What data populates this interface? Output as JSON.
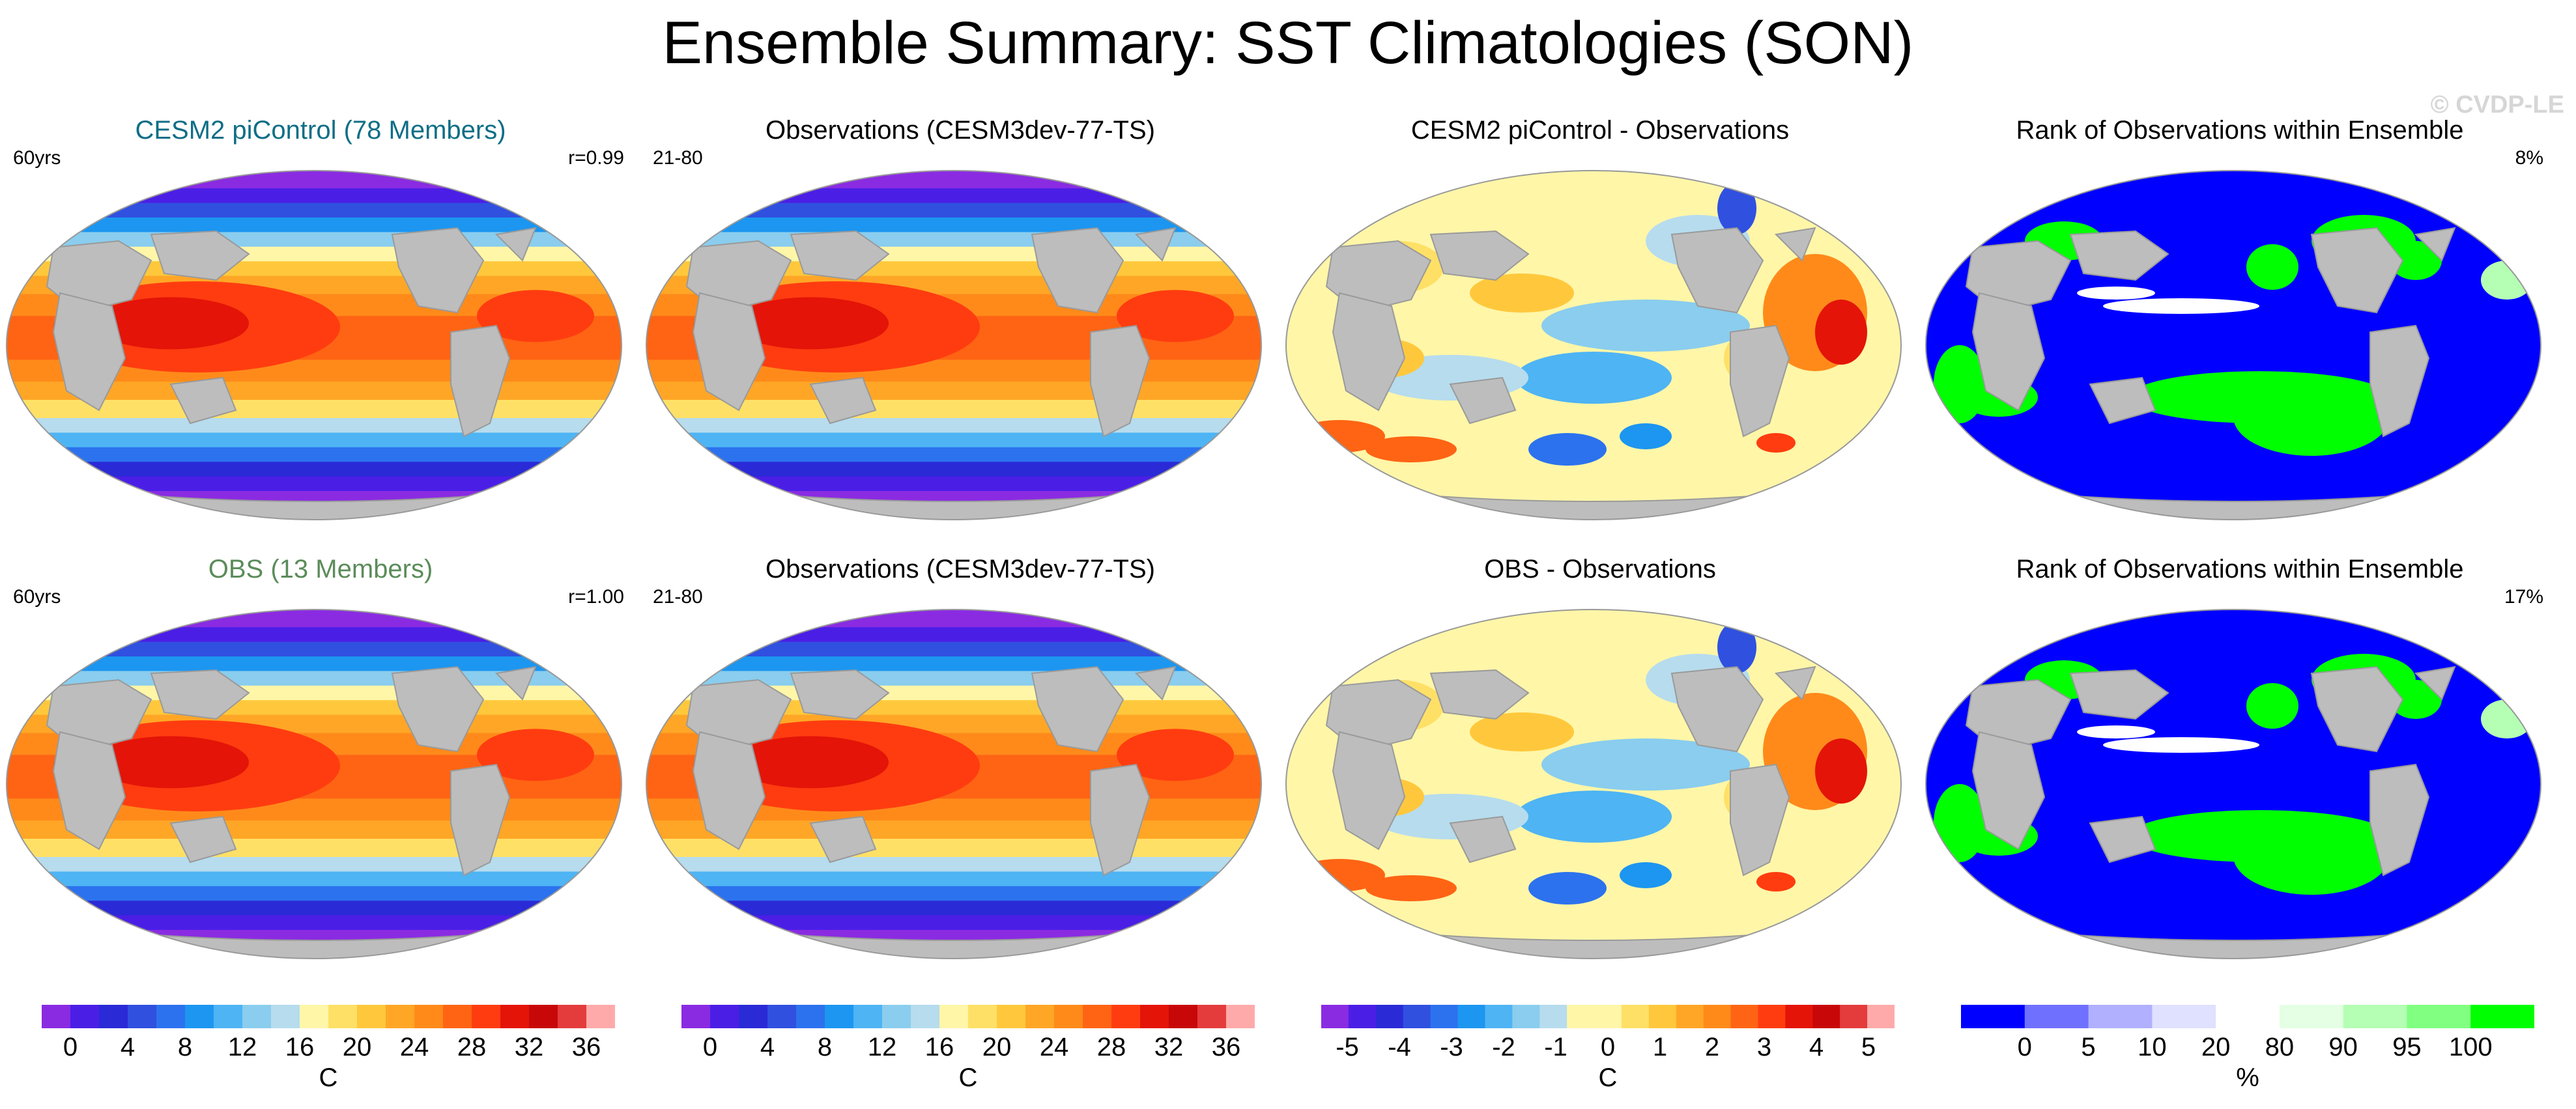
{
  "page": {
    "title": "Ensemble Summary: SST Climatologies (SON)",
    "credit": "© CVDP-LE"
  },
  "panels": [
    {
      "title": "CESM2 piControl (78 Members)",
      "title_color": "#0f6e86",
      "left_label": "60yrs",
      "right_label": "r=0.99",
      "field": "climatology"
    },
    {
      "title": "Observations (CESM3dev-77-TS)",
      "title_color": "#000000",
      "left_label": "21-80",
      "right_label": "",
      "field": "climatology"
    },
    {
      "title": "CESM2 piControl - Observations",
      "title_color": "#000000",
      "left_label": "",
      "right_label": "",
      "field": "difference"
    },
    {
      "title": "Rank of Observations within Ensemble",
      "title_color": "#000000",
      "left_label": "",
      "right_label": "8%",
      "field": "rank"
    },
    {
      "title": "OBS (13 Members)",
      "title_color": "#5b8c5a",
      "left_label": "60yrs",
      "right_label": "r=1.00",
      "field": "climatology"
    },
    {
      "title": "Observations (CESM3dev-77-TS)",
      "title_color": "#000000",
      "left_label": "21-80",
      "right_label": "",
      "field": "climatology"
    },
    {
      "title": "OBS - Observations",
      "title_color": "#000000",
      "left_label": "",
      "right_label": "",
      "field": "difference"
    },
    {
      "title": "Rank of Observations within Ensemble",
      "title_color": "#000000",
      "left_label": "",
      "right_label": "17%",
      "field": "rank"
    }
  ],
  "chart_data": [
    {
      "type": "heatmap",
      "name": "SST climatology",
      "unit": "C",
      "levels": [
        0,
        2,
        4,
        6,
        8,
        10,
        12,
        14,
        16,
        18,
        20,
        22,
        24,
        26,
        28,
        30,
        32,
        34,
        36
      ],
      "tick_labels": [
        "0",
        "4",
        "8",
        "12",
        "16",
        "20",
        "24",
        "28",
        "32",
        "36"
      ],
      "colors": [
        "#8a2be2",
        "#4b1ee6",
        "#2a2ad6",
        "#3050e0",
        "#2c72ee",
        "#1c96f0",
        "#4eb4f4",
        "#8acdee",
        "#b6dcee",
        "#fff6a8",
        "#ffe066",
        "#ffc83c",
        "#ffa626",
        "#ff8a1a",
        "#ff6414",
        "#ff3c10",
        "#e41408",
        "#c80808",
        "#e43c3c",
        "#ffaaaa"
      ]
    },
    {
      "type": "heatmap",
      "name": "SST difference",
      "unit": "C",
      "levels": [
        -5,
        -4.5,
        -4,
        -3.5,
        -3,
        -2.5,
        -2,
        -1.5,
        -1,
        -0.5,
        0,
        0.5,
        1,
        1.5,
        2,
        2.5,
        3,
        3.5,
        4,
        4.5,
        5
      ],
      "tick_labels": [
        "-5",
        "-4",
        "-3",
        "-2",
        "-1",
        "0",
        "1",
        "2",
        "3",
        "4",
        "5"
      ],
      "colors": [
        "#8a2be2",
        "#4b1ee6",
        "#2a2ad6",
        "#3050e0",
        "#2c72ee",
        "#1c96f0",
        "#4eb4f4",
        "#8acdee",
        "#b6dcee",
        "#fff6a8",
        "#fff6a8",
        "#ffe066",
        "#ffc83c",
        "#ffa626",
        "#ff8a1a",
        "#ff6414",
        "#ff3c10",
        "#e41408",
        "#c80808",
        "#e43c3c",
        "#ffaaaa"
      ]
    },
    {
      "type": "heatmap",
      "name": "Rank of observations",
      "unit": "%",
      "levels": [
        0,
        5,
        10,
        20,
        80,
        90,
        95,
        100
      ],
      "tick_labels": [
        "0",
        "5",
        "10",
        "20",
        "80",
        "90",
        "95",
        "100"
      ],
      "colors": [
        "#0000ff",
        "#7070ff",
        "#b0b0ff",
        "#e0e0ff",
        "#ffffff",
        "#e4ffe4",
        "#b4ffb4",
        "#80ff80",
        "#00ff00"
      ]
    }
  ]
}
